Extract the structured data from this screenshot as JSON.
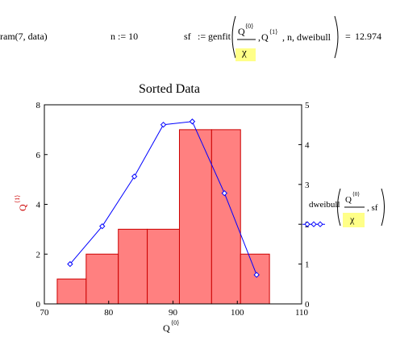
{
  "worksheet": {
    "expr1": "ram(7, data)",
    "expr2": "n := 10",
    "expr3_lhs": "sf",
    "expr3_assign": ":=",
    "expr3_func": "genfit",
    "q_sym": "Q",
    "q0_sup": "⟨0⟩",
    "q1_sup": "⟨1⟩",
    "chi": "χ",
    "expr3_args": ", n, dweibull",
    "expr3_eq": "=",
    "expr3_result": "12.974"
  },
  "colors": {
    "bar_fill": "#ff8080",
    "bar_stroke": "#cc0000",
    "line": "#0000ff",
    "left_ylabel": "#cc0000"
  },
  "chart_data": {
    "type": "bar",
    "title": "Sorted Data",
    "xlabel_base": "Q",
    "xlabel_sup": "⟨0⟩",
    "ylabel_left_base": "Q",
    "ylabel_left_sup": "⟨1⟩",
    "xlim": [
      70,
      110
    ],
    "ylim_left": [
      0,
      8
    ],
    "ylim_right": [
      0,
      5
    ],
    "xticks": [
      70,
      80,
      90,
      100,
      110
    ],
    "yticks_left": [
      0,
      2,
      4,
      6,
      8
    ],
    "yticks_right": [
      0,
      1,
      2,
      3,
      4,
      5
    ],
    "bars": [
      {
        "x0": 72,
        "x1": 76.5,
        "value": 1
      },
      {
        "x0": 76.5,
        "x1": 81.5,
        "value": 2
      },
      {
        "x0": 81.5,
        "x1": 86,
        "value": 3
      },
      {
        "x0": 86,
        "x1": 91,
        "value": 3
      },
      {
        "x0": 91,
        "x1": 96,
        "value": 7
      },
      {
        "x0": 96,
        "x1": 100.5,
        "value": 7
      },
      {
        "x0": 100.5,
        "x1": 105,
        "value": 2
      }
    ],
    "series": [
      {
        "name": "dweibull(Q⟨0⟩/χ, sf)",
        "axis": "right",
        "x": [
          74,
          79,
          84,
          88.5,
          93,
          98,
          103
        ],
        "y": [
          1.0,
          1.95,
          3.2,
          4.5,
          4.58,
          2.78,
          0.73
        ]
      }
    ],
    "legend": {
      "func": "dweibull",
      "q_sym": "Q",
      "q_sup": "⟨0⟩",
      "chi": "χ",
      "rest": ", sf"
    }
  }
}
